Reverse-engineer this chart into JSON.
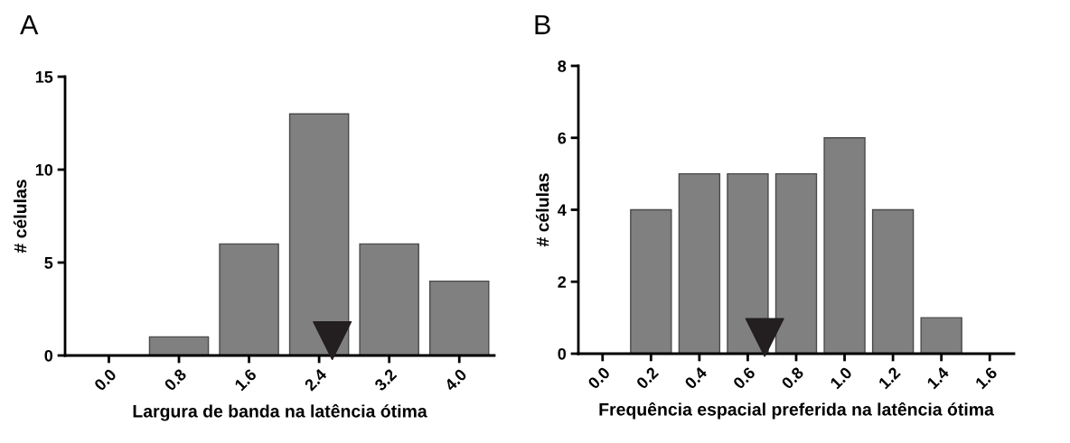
{
  "chart_data": [
    {
      "type": "bar",
      "title": "A",
      "xlabel": "Largura de banda na latência ótima",
      "ylabel": "# células",
      "x": [
        0,
        0.8,
        1.6,
        2.4,
        3.2,
        4.0
      ],
      "series": [
        {
          "color": "#808080",
          "values": [
            0,
            1,
            6,
            13,
            6,
            4
          ]
        },
        {
          "type": "scatter",
          "color": "#231f20",
          "marker": "triangle",
          "x": [
            2.55
          ],
          "values": [
            0.8
          ]
        }
      ],
      "xlim": [
        -0.5,
        4.4
      ],
      "ylim": [
        0,
        15
      ],
      "xticks": [
        {
          "value": 0,
          "label": "0.0"
        },
        {
          "value": 0.8,
          "label": "0.8"
        },
        {
          "value": 1.6,
          "label": "1.6"
        },
        {
          "value": 2.4,
          "label": "2.4"
        },
        {
          "value": 3.2,
          "label": "3.2"
        },
        {
          "value": 4.0,
          "label": "4.0"
        }
      ],
      "yticks": [
        0,
        5,
        10,
        15
      ]
    },
    {
      "type": "bar",
      "title": "B",
      "xlabel": "Frequência espacial preferida na latência ótima",
      "ylabel": "# células",
      "x": [
        0,
        0.2,
        0.4,
        0.6,
        0.8,
        1.0,
        1.2,
        1.4,
        1.6
      ],
      "series": [
        {
          "color": "#808080",
          "values": [
            0,
            4,
            5,
            5,
            5,
            6,
            4,
            1,
            0
          ]
        },
        {
          "type": "scatter",
          "color": "#231f20",
          "marker": "triangle",
          "x": [
            0.67
          ],
          "values": [
            0.45
          ]
        }
      ],
      "xlim": [
        -0.1,
        1.7
      ],
      "ylim": [
        0,
        8
      ],
      "xticks": [
        {
          "value": 0,
          "label": "0.0"
        },
        {
          "value": 0.2,
          "label": "0.2"
        },
        {
          "value": 0.4,
          "label": "0.4"
        },
        {
          "value": 0.6,
          "label": "0.6"
        },
        {
          "value": 0.8,
          "label": "0.8"
        },
        {
          "value": 1.0,
          "label": "1.0"
        },
        {
          "value": 1.2,
          "label": "1.2"
        },
        {
          "value": 1.4,
          "label": "1.4"
        },
        {
          "value": 1.6,
          "label": "1.6"
        }
      ],
      "yticks": [
        0,
        2,
        4,
        6,
        8
      ]
    }
  ]
}
